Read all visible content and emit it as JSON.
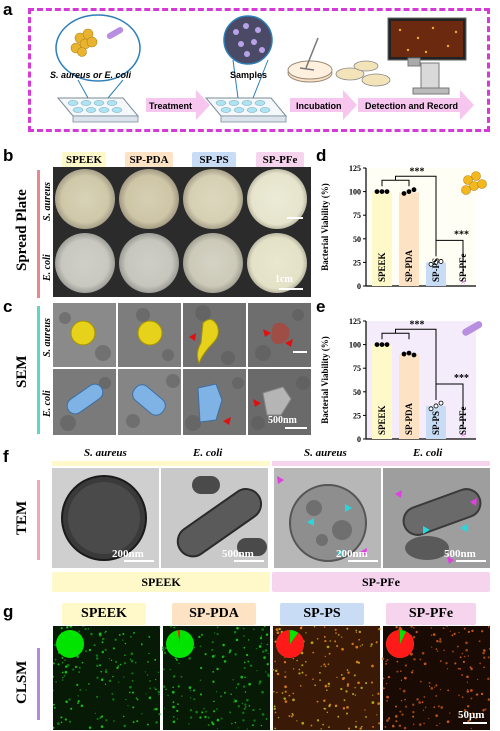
{
  "panels": {
    "a": {
      "label": "a",
      "organisms": "S. aureus or E. coli",
      "samples": "Samples",
      "steps": [
        "Treatment",
        "Incubation",
        "Detection and Record"
      ]
    },
    "b": {
      "label": "b",
      "row_title": "Spread Plate",
      "rows": [
        "S. aureus",
        "E. coli"
      ],
      "groups": [
        "SPEEK",
        "SP-PDA",
        "SP-PS",
        "SP-PFe"
      ],
      "scale": "1cm"
    },
    "c": {
      "label": "c",
      "row_title": "SEM",
      "rows": [
        "S. aureus",
        "E. coli"
      ],
      "scale": "500nm"
    },
    "d": {
      "label": "d"
    },
    "e": {
      "label": "e"
    },
    "f": {
      "label": "f",
      "row_title": "TEM",
      "cols": [
        "S. aureus",
        "E. coli",
        "S. aureus",
        "E. coli"
      ],
      "scales": [
        "200nm",
        "500nm",
        "200nm",
        "500nm"
      ],
      "groups": [
        "SPEEK",
        "SP-PFe"
      ]
    },
    "g": {
      "label": "g",
      "row_title": "CLSM",
      "groups": [
        "SPEEK",
        "SP-PDA",
        "SP-PS",
        "SP-PFe"
      ],
      "scale": "50μm",
      "dead_fraction": [
        0.0,
        0.03,
        0.9,
        0.93
      ]
    }
  },
  "colors": {
    "purple_border": "#d63ad6",
    "speek": "#fff8c8",
    "sppda": "#fde3c4",
    "spps": "#c9dcf5",
    "sppfe": "#f6d4ee",
    "live": "#00e400",
    "dead": "#ff1a1a"
  },
  "chart_data": [
    {
      "type": "bar",
      "title": "",
      "ylabel": "Bacterial Viability (%)",
      "ylim": [
        0,
        125
      ],
      "yticks": [
        0,
        25,
        50,
        75,
        100,
        125
      ],
      "categories": [
        "SPEEK",
        "SP-PDA",
        "SP-PS",
        "SP-PFe"
      ],
      "values": [
        100,
        99,
        25,
        0
      ],
      "points": [
        [
          100,
          100,
          100
        ],
        [
          98,
          100,
          102
        ],
        [
          23,
          25,
          26
        ],
        [
          0,
          0,
          0
        ]
      ],
      "significance": [
        "***",
        "***"
      ],
      "bar_colors": [
        "#fff8c8",
        "#fde3c4",
        "#c9dcf5",
        "#f6d4ee"
      ]
    },
    {
      "type": "bar",
      "title": "",
      "ylabel": "Bacterial Viability (%)",
      "ylim": [
        0,
        125
      ],
      "yticks": [
        0,
        25,
        50,
        75,
        100,
        125
      ],
      "categories": [
        "SPEEK",
        "SP-PDA",
        "SP-PS",
        "SP-PFe"
      ],
      "values": [
        100,
        90,
        35,
        0
      ],
      "points": [
        [
          100,
          100,
          100
        ],
        [
          90,
          91,
          89
        ],
        [
          32,
          35,
          38
        ],
        [
          0,
          0,
          0
        ]
      ],
      "significance": [
        "***",
        "***"
      ],
      "bar_colors": [
        "#fff8c8",
        "#fde3c4",
        "#c9dcf5",
        "#f6d4ee"
      ]
    }
  ]
}
